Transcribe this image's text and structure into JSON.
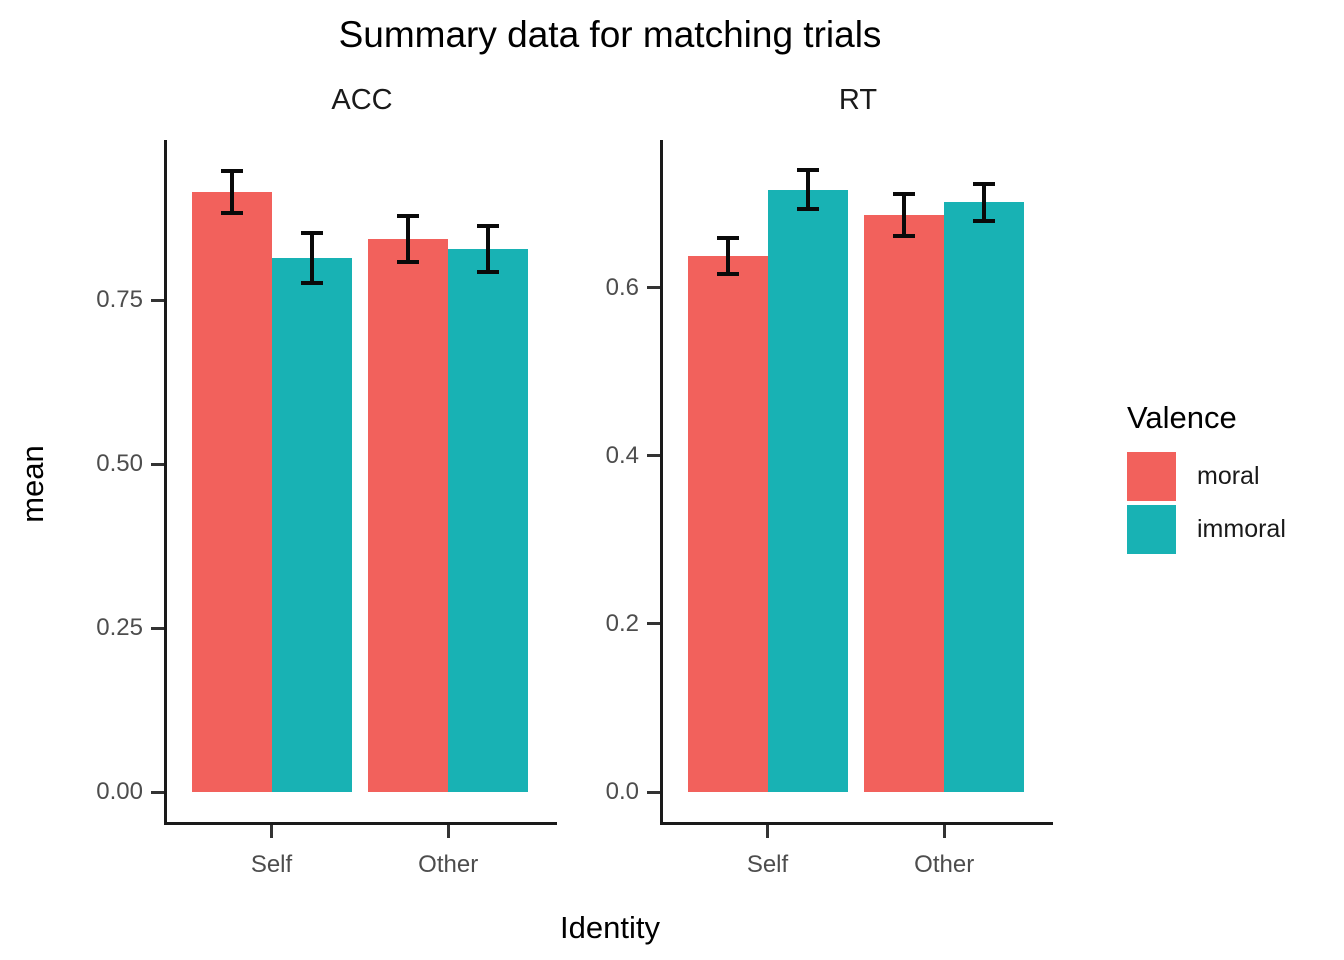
{
  "title": "Summary data for matching trials",
  "axes": {
    "x_label": "Identity",
    "y_label": "mean"
  },
  "legend": {
    "title": "Valence",
    "items": [
      {
        "label": "moral",
        "color": "#F2615C"
      },
      {
        "label": "immoral",
        "color": "#18B2B4"
      }
    ]
  },
  "chart_data": {
    "type": "bar",
    "title": "Summary data for matching trials",
    "xlabel": "Identity",
    "ylabel": "mean",
    "legend_title": "Valence",
    "legend_position": "right",
    "grid": false,
    "categories": [
      "Self",
      "Other"
    ],
    "facets": [
      {
        "label": "ACC",
        "series": [
          {
            "name": "moral",
            "values": [
              0.915,
              0.843
            ],
            "errors": [
              0.032,
              0.035
            ]
          },
          {
            "name": "immoral",
            "values": [
              0.814,
              0.828
            ],
            "errors": [
              0.038,
              0.035
            ]
          }
        ],
        "yticks": [
          0,
          0.25,
          0.5,
          0.75
        ],
        "ytick_labels": [
          "0.00",
          "0.25",
          "0.50",
          "0.75"
        ],
        "ylim": [
          -0.046,
          0.994
        ]
      },
      {
        "label": "RT",
        "series": [
          {
            "name": "moral",
            "values": [
              0.638,
              0.687
            ],
            "errors": [
              0.021,
              0.025
            ]
          },
          {
            "name": "immoral",
            "values": [
              0.717,
              0.702
            ],
            "errors": [
              0.023,
              0.022
            ]
          }
        ],
        "yticks": [
          0,
          0.2,
          0.4,
          0.6
        ],
        "ytick_labels": [
          "0.0",
          "0.2",
          "0.4",
          "0.6"
        ],
        "ylim": [
          -0.036,
          0.776
        ]
      }
    ]
  }
}
